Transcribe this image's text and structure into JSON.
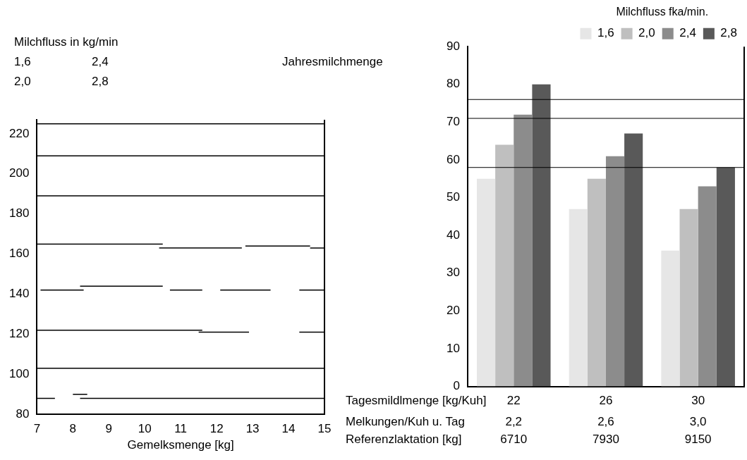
{
  "chart_data": [
    {
      "type": "line",
      "title": "Jahresmilchmenge",
      "xlabel": "Gemelksmenge [kg]",
      "xlim": [
        7,
        15
      ],
      "xticks": [
        7,
        8,
        9,
        10,
        11,
        12,
        13,
        14,
        15
      ],
      "ylim": [
        80,
        227
      ],
      "yticks": [
        80,
        100,
        120,
        140,
        160,
        180,
        200,
        220
      ],
      "grid": false,
      "legend": false,
      "marker": "none",
      "line_style": "solid",
      "annotations": [
        "Milchfluss in kg/min",
        "1,6",
        "2,4",
        "2,0",
        "2,8"
      ],
      "series": [
        {
          "color": "#000000",
          "x": [
            7,
            15
          ],
          "values": [
            225,
            225
          ]
        },
        {
          "color": "#000000",
          "x": [
            7,
            15
          ],
          "values": [
            209,
            209
          ]
        },
        {
          "color": "#000000",
          "x": [
            7,
            15
          ],
          "values": [
            189,
            189
          ]
        },
        {
          "color": "#000000",
          "x": [
            7,
            10.5
          ],
          "values": [
            165,
            165
          ]
        },
        {
          "color": "#000000",
          "x": [
            10.4,
            12.7
          ],
          "values": [
            163,
            163
          ]
        },
        {
          "color": "#000000",
          "x": [
            12.8,
            14.6
          ],
          "values": [
            164,
            164
          ]
        },
        {
          "color": "#000000",
          "x": [
            14.6,
            15
          ],
          "values": [
            163,
            163
          ]
        },
        {
          "color": "#000000",
          "x": [
            7.1,
            8.3
          ],
          "values": [
            142,
            142
          ]
        },
        {
          "color": "#000000",
          "x": [
            8.2,
            10.5
          ],
          "values": [
            144,
            144
          ]
        },
        {
          "color": "#000000",
          "x": [
            10.7,
            11.6
          ],
          "values": [
            142,
            142
          ]
        },
        {
          "color": "#000000",
          "x": [
            12.1,
            13.5
          ],
          "values": [
            142,
            142
          ]
        },
        {
          "color": "#000000",
          "x": [
            14.3,
            15
          ],
          "values": [
            142,
            142
          ]
        },
        {
          "color": "#000000",
          "x": [
            7,
            11.6
          ],
          "values": [
            122,
            122
          ]
        },
        {
          "color": "#000000",
          "x": [
            11.5,
            12.9
          ],
          "values": [
            121,
            121
          ]
        },
        {
          "color": "#000000",
          "x": [
            14.3,
            15
          ],
          "values": [
            121,
            121
          ]
        },
        {
          "color": "#000000",
          "x": [
            7,
            15
          ],
          "values": [
            103,
            103
          ]
        },
        {
          "color": "#000000",
          "x": [
            7,
            7.5
          ],
          "values": [
            88,
            88
          ]
        },
        {
          "color": "#000000",
          "x": [
            8.0,
            8.4
          ],
          "values": [
            90,
            90
          ]
        },
        {
          "color": "#000000",
          "x": [
            8.2,
            15
          ],
          "values": [
            88,
            88
          ]
        }
      ]
    },
    {
      "type": "bar",
      "categories": [
        "22",
        "26",
        "30"
      ],
      "xlabel": "Tagesmildlmenge [kg/Kuh]",
      "ylim": [
        0,
        90
      ],
      "yticks": [
        0,
        10,
        20,
        30,
        40,
        50,
        60,
        70,
        80,
        90
      ],
      "grid": false,
      "legend": "top right",
      "legend_title": "Milchfluss fka/min.",
      "annotations": [
        "Melkungen/Kuh u. Tag",
        "2,2",
        "2,6",
        "3,0",
        "Referenzlaktation [kg]",
        "6710",
        "7930",
        "9150"
      ],
      "ref_lines": [
        {
          "axis": "y",
          "value": 76
        },
        {
          "axis": "y",
          "value": 71
        },
        {
          "axis": "y",
          "value": 58
        }
      ],
      "series": [
        {
          "name": "1,6",
          "color": "#e6e6e6",
          "values": [
            55,
            47,
            36
          ]
        },
        {
          "name": "2,0",
          "color": "#bfbfbf",
          "values": [
            64,
            55,
            47
          ]
        },
        {
          "name": "2,4",
          "color": "#8c8c8c",
          "values": [
            72,
            61,
            53
          ]
        },
        {
          "name": "2,8",
          "color": "#595959",
          "values": [
            80,
            67,
            58
          ]
        }
      ]
    }
  ]
}
